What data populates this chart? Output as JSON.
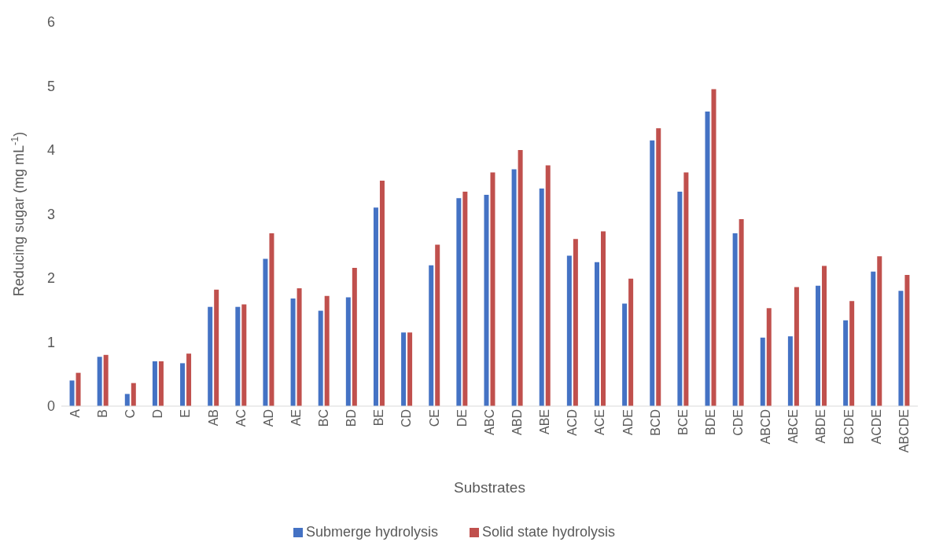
{
  "chart_data": {
    "type": "bar",
    "xlabel": "Substrates",
    "ylabel": "Reducing sugar (mg mL$^{-1}$)",
    "categories": [
      "A",
      "B",
      "C",
      "D",
      "E",
      "AB",
      "AC",
      "AD",
      "AE",
      "BC",
      "BD",
      "BE",
      "CD",
      "CE",
      "DE",
      "ABC",
      "ABD",
      "ABE",
      "ACD",
      "ACE",
      "ADE",
      "BCD",
      "BCE",
      "BDE",
      "CDE",
      "ABCD",
      "ABCE",
      "ABDE",
      "BCDE",
      "ACDE",
      "ABCDE"
    ],
    "series": [
      {
        "name": "Submerge hydrolysis",
        "color": "#4472c4",
        "values": [
          0.4,
          0.77,
          0.19,
          0.7,
          0.67,
          1.55,
          1.55,
          2.3,
          1.68,
          1.49,
          1.7,
          3.1,
          1.15,
          2.2,
          3.25,
          3.3,
          3.7,
          3.4,
          2.35,
          2.25,
          1.6,
          4.15,
          3.35,
          4.6,
          2.7,
          1.07,
          1.09,
          1.88,
          1.34,
          2.1,
          1.8
        ]
      },
      {
        "name": "Solid state hydrolysis",
        "color": "#c0504d",
        "values": [
          0.52,
          0.8,
          0.36,
          0.7,
          0.82,
          1.82,
          1.59,
          2.7,
          1.84,
          1.72,
          2.16,
          3.52,
          1.15,
          2.52,
          3.35,
          3.65,
          4.0,
          3.76,
          2.61,
          2.73,
          1.99,
          4.34,
          3.65,
          4.95,
          2.92,
          1.53,
          1.86,
          2.19,
          1.64,
          2.34,
          2.05
        ]
      }
    ],
    "ylim": [
      0,
      6
    ],
    "yticks": [
      0,
      1,
      2,
      3,
      4,
      5,
      6
    ],
    "grid": false,
    "legend": "bottom"
  }
}
